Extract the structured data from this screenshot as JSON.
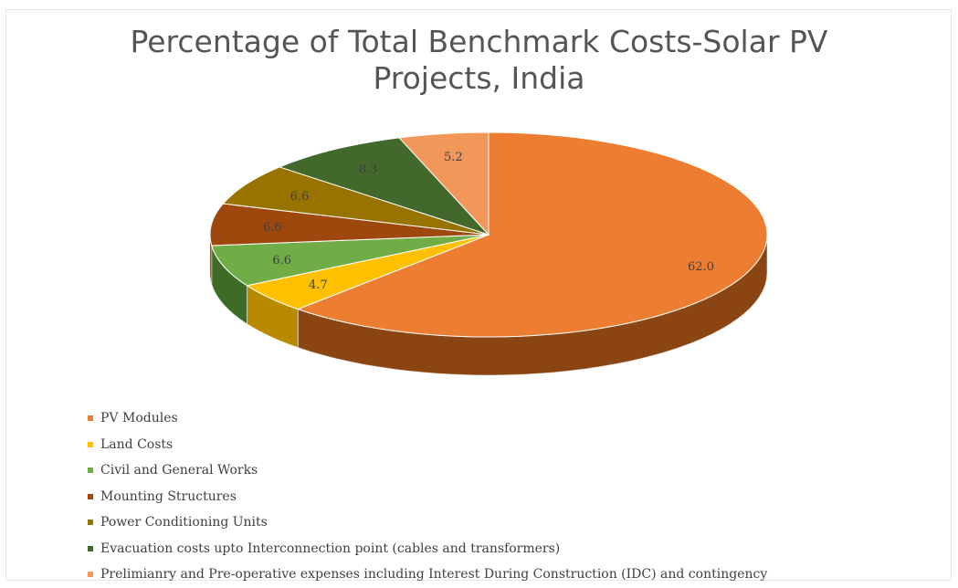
{
  "chart_data": {
    "type": "pie",
    "title_line1": "Percentage of Total Benchmark Costs-Solar PV",
    "title_line2": "Projects, India",
    "legend_position": "bottom",
    "style": "3d",
    "slices": [
      {
        "label": "PV Modules",
        "value": 62.0,
        "display": "62.0",
        "color": "#ED7D31",
        "side": "#8B4513"
      },
      {
        "label": "Land Costs",
        "value": 4.7,
        "display": "4.7",
        "color": "#FFC000",
        "side": "#B88A00"
      },
      {
        "label": "Civil and General Works",
        "value": 6.6,
        "display": "6.6",
        "color": "#70AD47",
        "side": "#3E6B25"
      },
      {
        "label": "Mounting Structures",
        "value": 6.6,
        "display": "6.6",
        "color": "#9E480E",
        "side": "#5E2A08"
      },
      {
        "label": "Power Conditioning Units",
        "value": 6.6,
        "display": "6.6",
        "color": "#997300",
        "side": "#5C4500"
      },
      {
        "label": "Evacuation costs upto Interconnection point (cables and transformers)",
        "value": 8.3,
        "display": "8.3",
        "color": "#43682B",
        "side": "#25391A"
      },
      {
        "label": "Prelimianry and Pre-operative expenses including Interest During Construction (IDC) and contingency",
        "value": 5.2,
        "display": "5.2",
        "color": "#F1975A",
        "side": "#A65E2E"
      }
    ]
  }
}
